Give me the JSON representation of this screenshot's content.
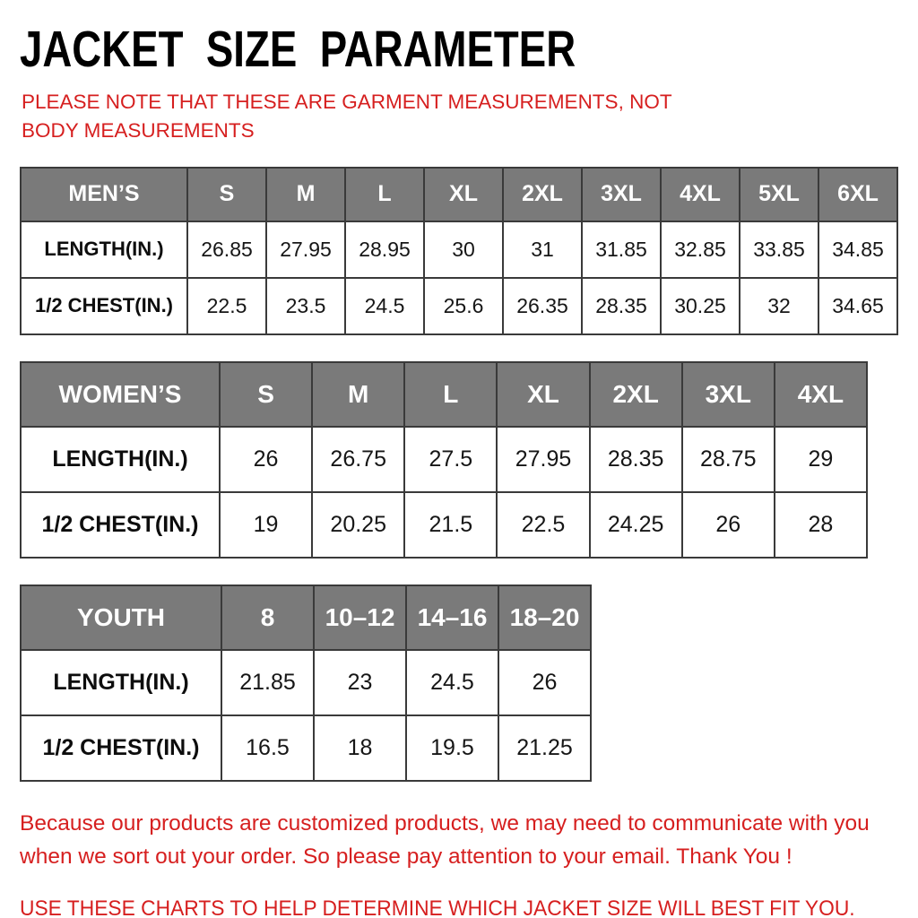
{
  "page": {
    "title": "JACKET SIZE PARAMETER",
    "note": "PLEASE NOTE THAT THESE ARE GARMENT MEASUREMENTS, NOT BODY MEASUREMENTS",
    "footer_line1": "Because our products are customized products, we may need to communicate with you when we sort out your order. So please pay attention to your email. Thank You !",
    "footer_line2": "USE THESE CHARTS TO HELP DETERMINE WHICH JACKET SIZE WILL BEST FIT YOU."
  },
  "colors": {
    "header_bg": "#7a7a7a",
    "header_text": "#ffffff",
    "table_border": "#3a3a3a",
    "accent_red": "#d61f1f",
    "body_text": "#161616",
    "title_text": "#000000"
  },
  "tables": [
    {
      "key": "mens",
      "name": "MEN’S",
      "sizes": [
        "S",
        "M",
        "L",
        "XL",
        "2XL",
        "3XL",
        "4XL",
        "5XL",
        "6XL"
      ],
      "rows": [
        {
          "label": "LENGTH(IN.)",
          "values": [
            "26.85",
            "27.95",
            "28.95",
            "30",
            "31",
            "31.85",
            "32.85",
            "33.85",
            "34.85"
          ]
        },
        {
          "label": "1/2 CHEST(IN.)",
          "values": [
            "22.5",
            "23.5",
            "24.5",
            "25.6",
            "26.35",
            "28.35",
            "30.25",
            "32",
            "34.65"
          ]
        }
      ]
    },
    {
      "key": "womens",
      "name": "WOMEN’S",
      "sizes": [
        "S",
        "M",
        "L",
        "XL",
        "2XL",
        "3XL",
        "4XL"
      ],
      "rows": [
        {
          "label": "LENGTH(IN.)",
          "values": [
            "26",
            "26.75",
            "27.5",
            "27.95",
            "28.35",
            "28.75",
            "29"
          ]
        },
        {
          "label": "1/2 CHEST(IN.)",
          "values": [
            "19",
            "20.25",
            "21.5",
            "22.5",
            "24.25",
            "26",
            "28"
          ]
        }
      ]
    },
    {
      "key": "youth",
      "name": "YOUTH",
      "sizes": [
        "8",
        "10–12",
        "14–16",
        "18–20"
      ],
      "rows": [
        {
          "label": "LENGTH(IN.)",
          "values": [
            "21.85",
            "23",
            "24.5",
            "26"
          ]
        },
        {
          "label": "1/2 CHEST(IN.)",
          "values": [
            "16.5",
            "18",
            "19.5",
            "21.25"
          ]
        }
      ]
    }
  ]
}
